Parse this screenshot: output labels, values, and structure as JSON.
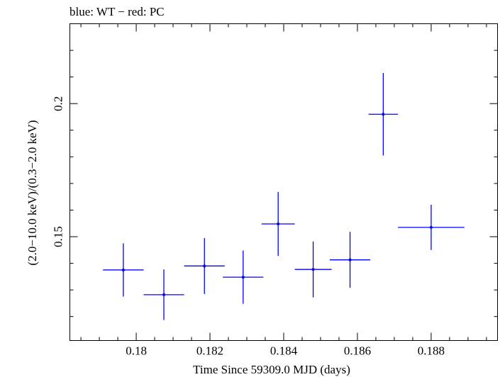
{
  "title": "blue: WT − red: PC",
  "chart_data": {
    "type": "scatter",
    "title": "blue: WT − red: PC",
    "xlabel": "Time Since 59309.0 MJD (days)",
    "ylabel": "(2.0−10.0 keV)/(0.3−2.0 keV)",
    "xlim": [
      0.1782,
      0.1898
    ],
    "ylim": [
      0.111,
      0.23
    ],
    "x_ticks": [
      0.18,
      0.182,
      0.184,
      0.186,
      0.188
    ],
    "x_tick_labels": [
      "0.18",
      "0.182",
      "0.184",
      "0.186",
      "0.188"
    ],
    "y_ticks": [
      0.15,
      0.2
    ],
    "y_tick_labels": [
      "0.15",
      "0.2"
    ],
    "grid": false,
    "series": [
      {
        "color": "#0000ff",
        "points": [
          {
            "x": 0.17965,
            "y": 0.1375,
            "xerr": 0.00055,
            "yerr": 0.01
          },
          {
            "x": 0.18075,
            "y": 0.1282,
            "xerr": 0.00055,
            "yerr": 0.0095
          },
          {
            "x": 0.18185,
            "y": 0.139,
            "xerr": 0.00055,
            "yerr": 0.0105
          },
          {
            "x": 0.1829,
            "y": 0.1348,
            "xerr": 0.00055,
            "yerr": 0.01
          },
          {
            "x": 0.18385,
            "y": 0.1548,
            "xerr": 0.00045,
            "yerr": 0.012
          },
          {
            "x": 0.1848,
            "y": 0.1377,
            "xerr": 0.0005,
            "yerr": 0.0105
          },
          {
            "x": 0.1858,
            "y": 0.1413,
            "xerr": 0.00055,
            "yerr": 0.0105
          },
          {
            "x": 0.1867,
            "y": 0.196,
            "xerr": 0.0004,
            "yerr": 0.0155
          },
          {
            "x": 0.188,
            "y": 0.1535,
            "xerr": 0.0009,
            "yerr": 0.0085
          }
        ]
      }
    ]
  }
}
